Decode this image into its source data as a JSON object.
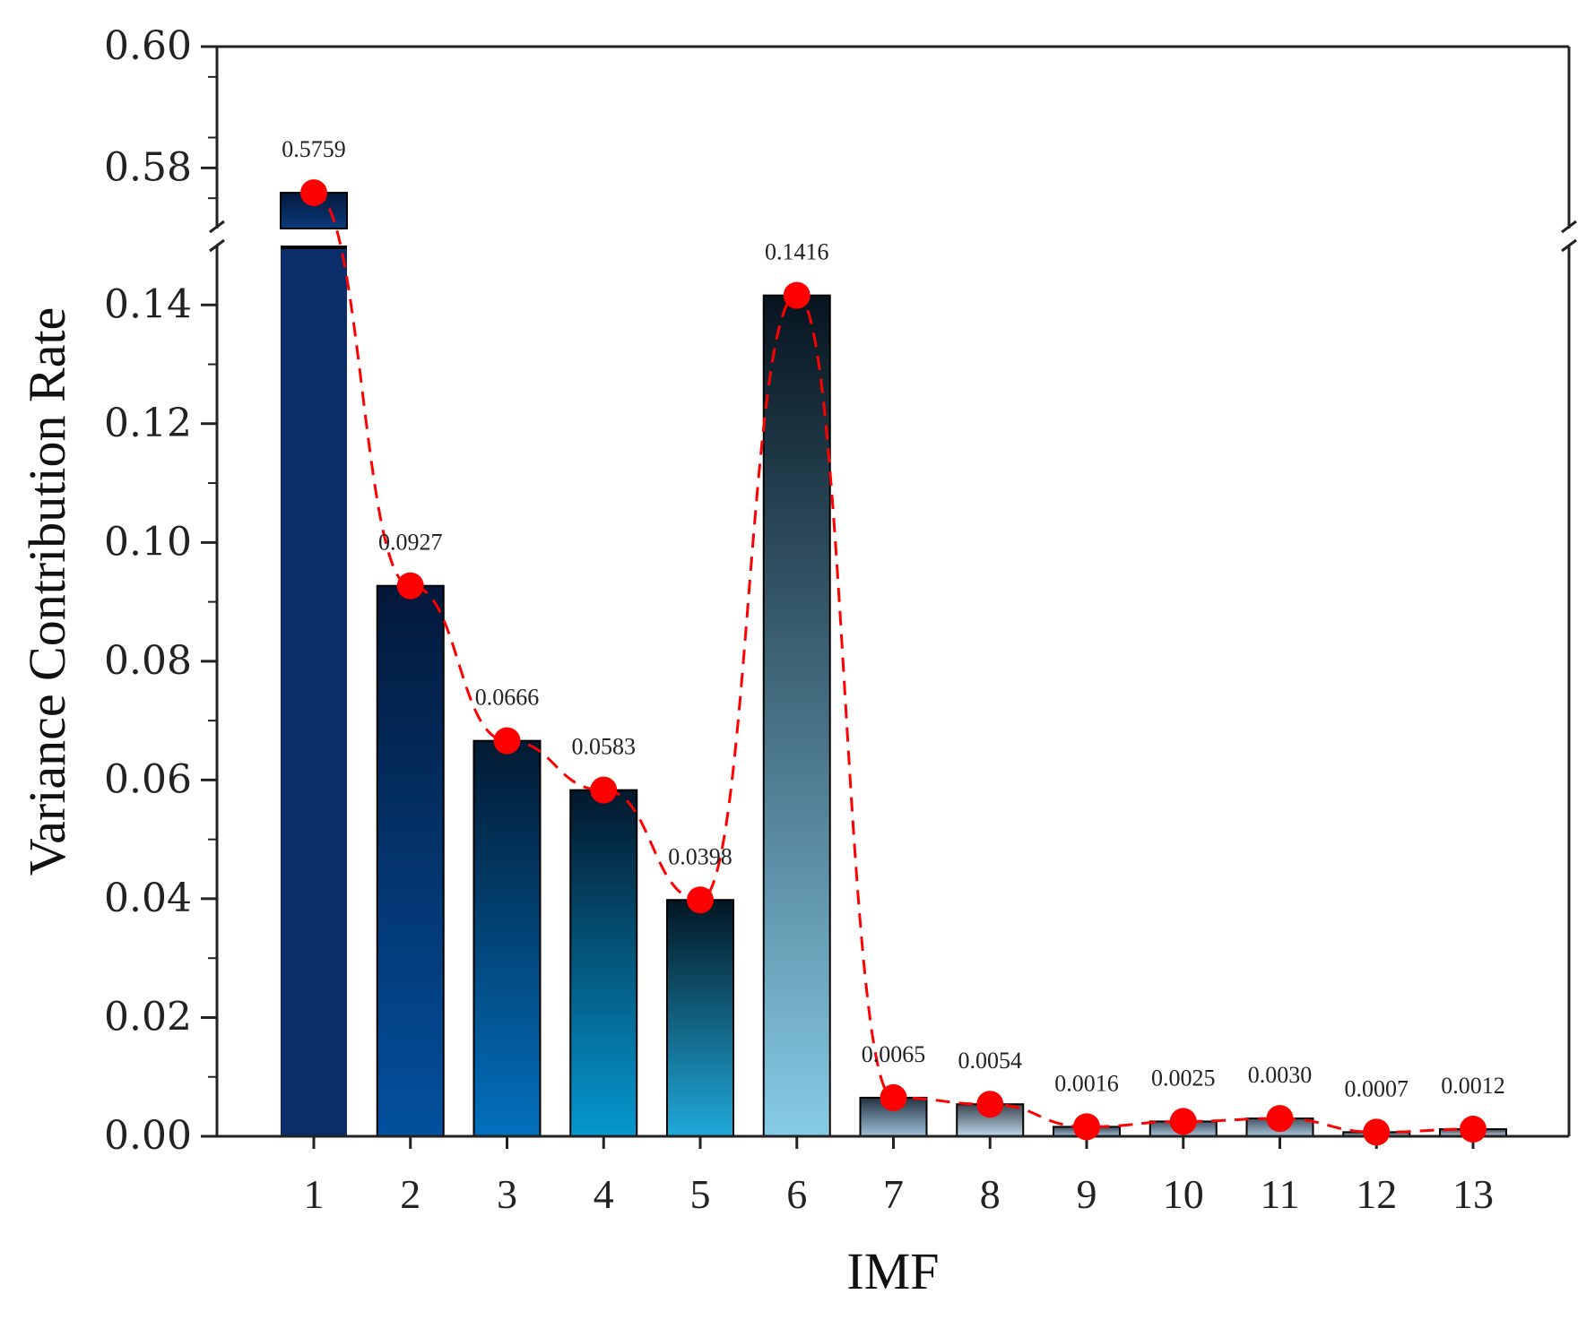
{
  "chart_data": {
    "type": "bar",
    "xlabel": "IMF",
    "ylabel": "Variance Contribution Rate",
    "categories": [
      "1",
      "2",
      "3",
      "4",
      "5",
      "6",
      "7",
      "8",
      "9",
      "10",
      "11",
      "12",
      "13"
    ],
    "values": [
      0.5759,
      0.0927,
      0.0666,
      0.0583,
      0.0398,
      0.1416,
      0.0065,
      0.0054,
      0.0016,
      0.0025,
      0.003,
      0.0007,
      0.0012
    ],
    "data_labels": [
      "0.5759",
      "0.0927",
      "0.0666",
      "0.0583",
      "0.0398",
      "0.1416",
      "0.0065",
      "0.0054",
      "0.0016",
      "0.0025",
      "0.0030",
      "0.0007",
      "0.0012"
    ],
    "y_axis_break": {
      "lower_range": [
        0,
        0.15
      ],
      "upper_range": [
        0.57,
        0.6
      ]
    },
    "yticks_lower": [
      0.0,
      0.02,
      0.04,
      0.06,
      0.08,
      0.1,
      0.12,
      0.14
    ],
    "yticks_lower_labels": [
      "0.00",
      "0.02",
      "0.04",
      "0.06",
      "0.08",
      "0.10",
      "0.12",
      "0.14"
    ],
    "yticks_upper": [
      0.58,
      0.6
    ],
    "yticks_upper_labels": [
      "0.58",
      "0.60"
    ],
    "line_overlay": {
      "style": "dashed",
      "marker": "circle",
      "color": "#ff0000"
    },
    "grid": false,
    "legend": "none",
    "bar_top_colors": [
      "#02152f",
      "#03183a",
      "#021a33",
      "#03182d",
      "#031622",
      "#06141f",
      "#24323f",
      "#3a4450",
      "#3c4a58",
      "#465464",
      "#465464",
      "#3c4652",
      "#3a4450"
    ],
    "bar_bottom_colors": [
      "#0b2e6b",
      "#03509e",
      "#0370bd",
      "#0598cf",
      "#20a9da",
      "#86cbe6",
      "#9ec1db",
      "#bfd8ea",
      "#a0c0d8",
      "#a7c4da",
      "#a8c6dc",
      "#bcd3e3",
      "#bfd4e3"
    ]
  }
}
